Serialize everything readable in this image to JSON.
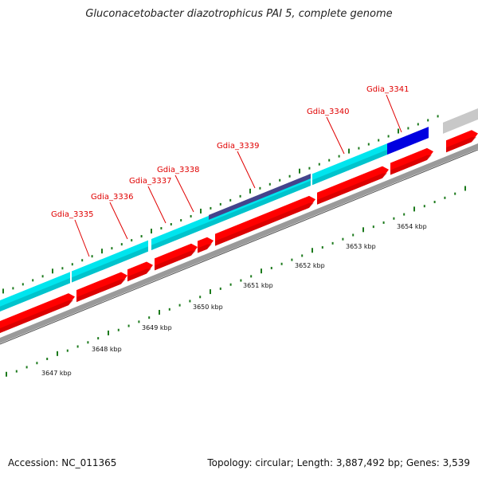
{
  "title": "Gluconacetobacter diazotrophicus PAI 5, complete genome",
  "footer": {
    "accession": "Accession: NC_011365",
    "summary": "Topology: circular; Length: 3,887,492 bp; Genes: 3,539"
  },
  "colors": {
    "gene_label": "#e00000",
    "cds": "#ff0000",
    "cds_dark": "#b80000",
    "outer_feature": "#00e5ee",
    "outer_feature_dark": "#00a8b0",
    "highlight_feature": "#44448c",
    "blue_feature": "#0000e0",
    "grey_feature": "#c8c8c8",
    "backbone": "#9a9a9a",
    "tick": "#1c7a1c"
  },
  "gene_labels": [
    "Gdia_3335",
    "Gdia_3336",
    "Gdia_3337",
    "Gdia_3338",
    "Gdia_3339",
    "Gdia_3340",
    "Gdia_3341"
  ],
  "kbp_labels": [
    "3647 kbp",
    "3648 kbp",
    "3649 kbp",
    "3650 kbp",
    "3651 kbp",
    "3652 kbp",
    "3653 kbp",
    "3654 kbp"
  ]
}
